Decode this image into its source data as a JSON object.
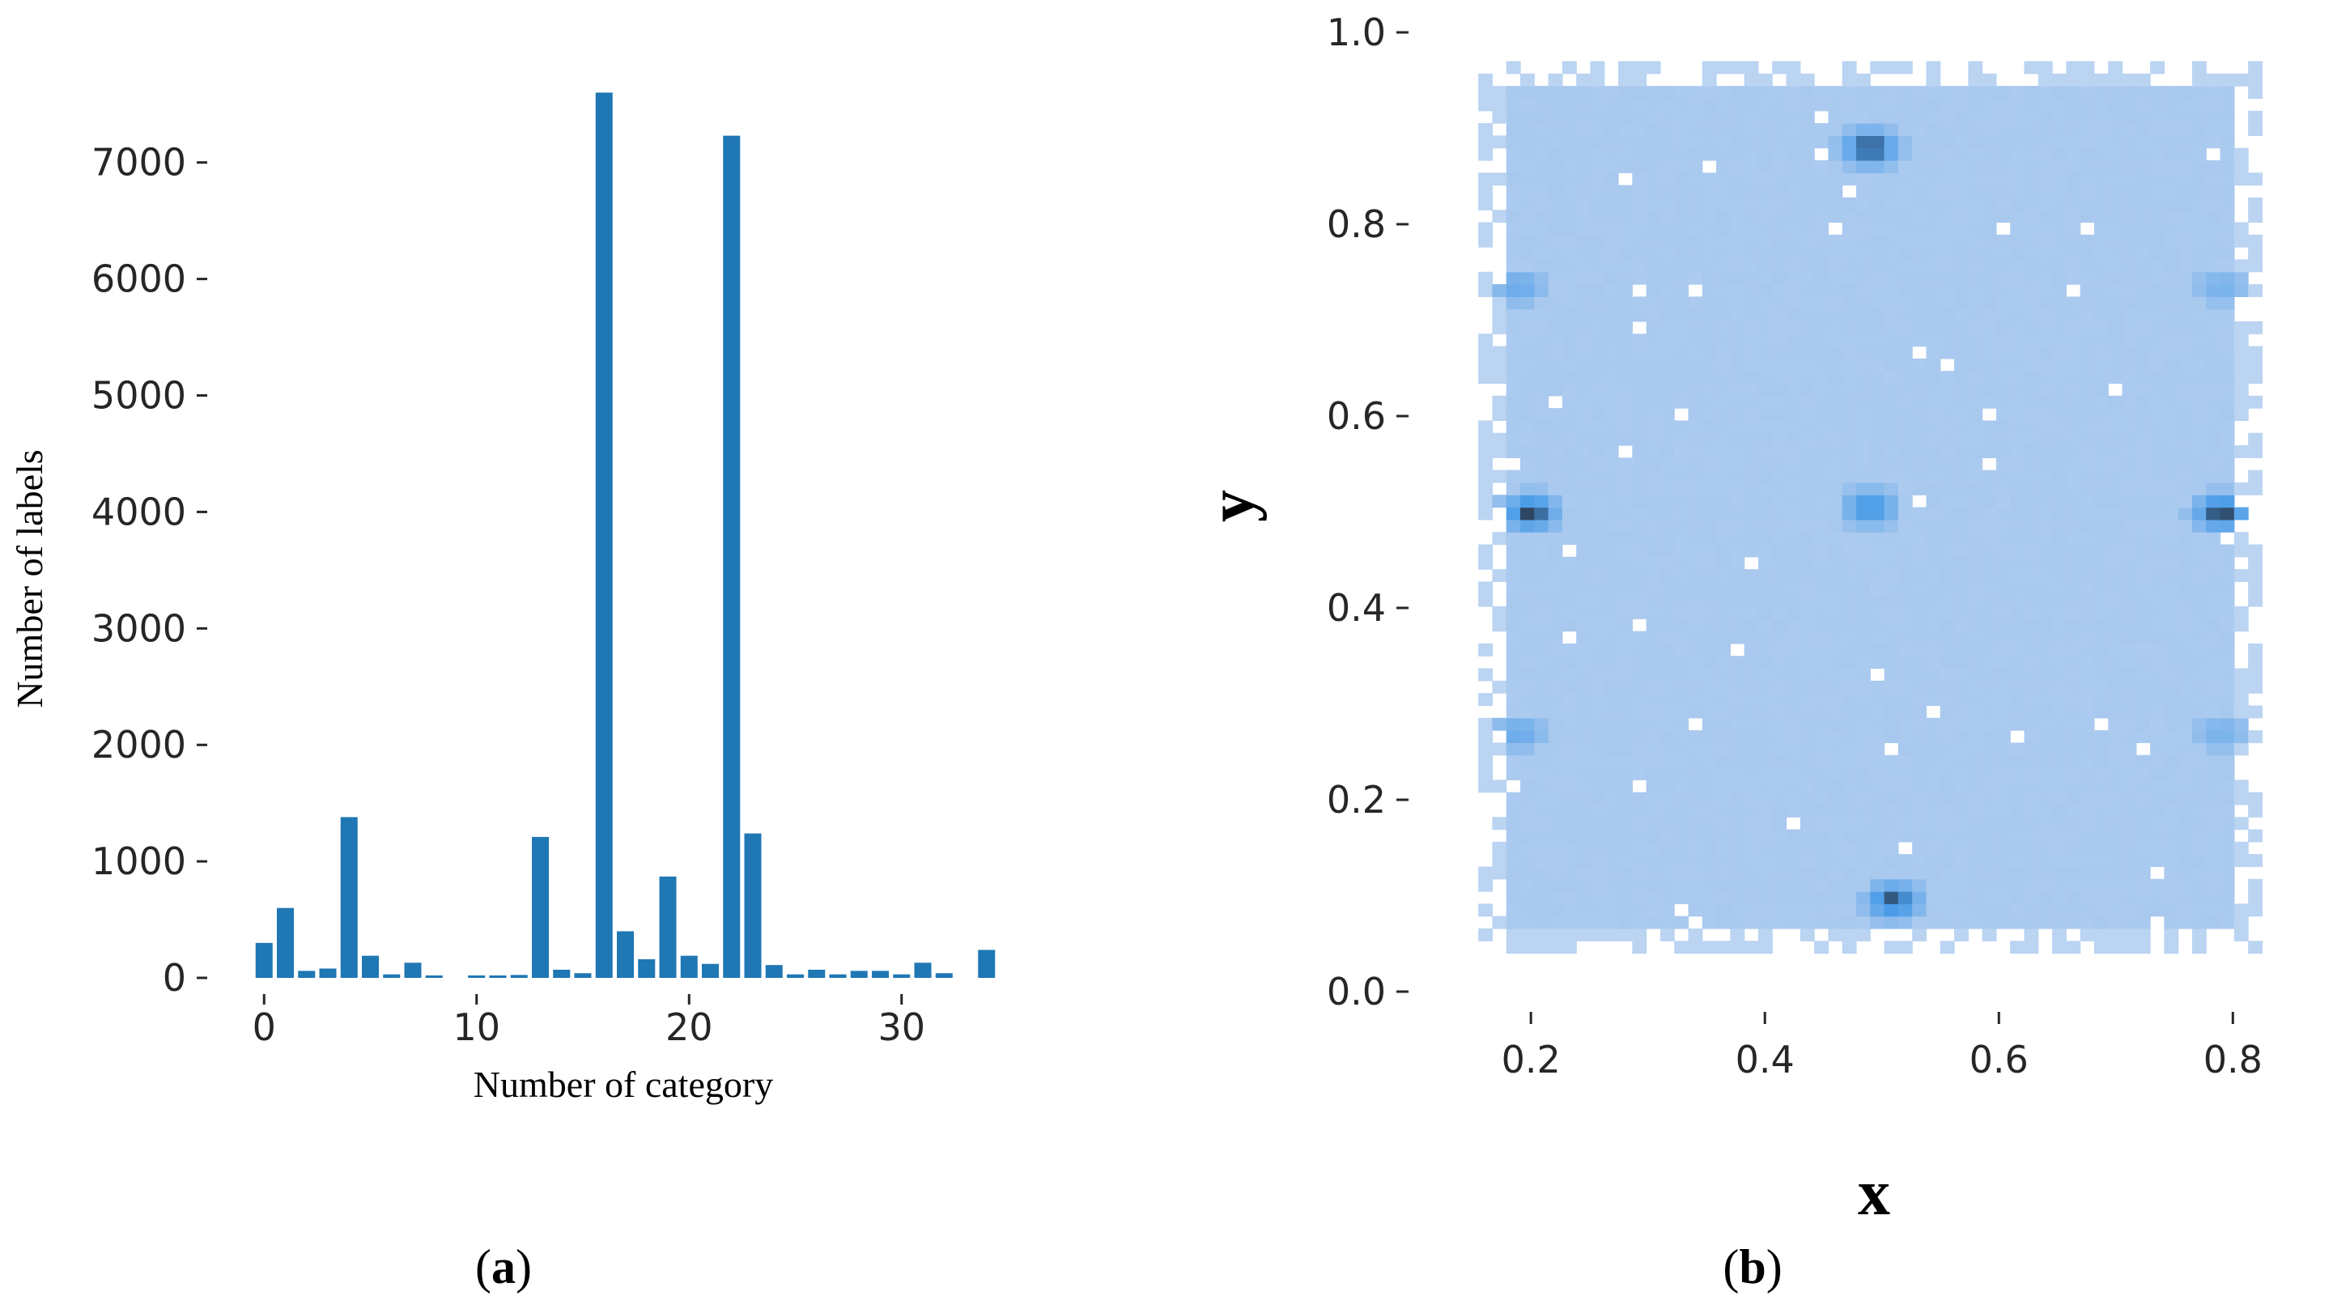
{
  "chart_data": [
    {
      "type": "bar",
      "panel_label": "a",
      "xlabel": "Number of category",
      "ylabel": "Number of labels",
      "x_ticks": [
        0,
        10,
        20,
        30
      ],
      "y_ticks": [
        0,
        1000,
        2000,
        3000,
        4000,
        5000,
        6000,
        7000
      ],
      "xlim": [
        -1,
        35
      ],
      "ylim": [
        0,
        7700
      ],
      "color": "#1f77b4",
      "categories": [
        0,
        1,
        2,
        3,
        4,
        5,
        6,
        7,
        8,
        9,
        10,
        11,
        12,
        13,
        14,
        15,
        16,
        17,
        18,
        19,
        20,
        21,
        22,
        23,
        24,
        25,
        26,
        27,
        28,
        29,
        30,
        31,
        32,
        33,
        34
      ],
      "values": [
        300,
        600,
        60,
        80,
        1380,
        190,
        30,
        130,
        15,
        0,
        10,
        10,
        25,
        1210,
        70,
        40,
        7600,
        400,
        160,
        870,
        190,
        120,
        7230,
        1240,
        110,
        30,
        70,
        30,
        60,
        60,
        30,
        130,
        40,
        0,
        240
      ]
    },
    {
      "type": "heatmap",
      "panel_label": "b",
      "xlabel": "x",
      "ylabel": "y",
      "x_ticks": [
        "0.2",
        "0.4",
        "0.6",
        "0.8"
      ],
      "y_ticks": [
        "0.0",
        "0.2",
        "0.4",
        "0.6",
        "0.8",
        "1.0"
      ],
      "xlim": [
        0.13,
        0.86
      ],
      "ylim": [
        0.0,
        1.0
      ],
      "base_color": "#a8c8ee",
      "low_color": "#c9ddf5",
      "hot_color": "#4a9ce8",
      "peak_color": "#2b3e55",
      "hotspots": [
        {
          "x": 0.49,
          "y": 0.88,
          "level": 1.0
        },
        {
          "x": 0.2,
          "y": 0.5,
          "level": 1.0
        },
        {
          "x": 0.49,
          "y": 0.505,
          "level": 0.75
        },
        {
          "x": 0.79,
          "y": 0.5,
          "level": 1.0
        },
        {
          "x": 0.51,
          "y": 0.095,
          "level": 0.95
        },
        {
          "x": 0.19,
          "y": 0.735,
          "level": 0.45
        },
        {
          "x": 0.19,
          "y": 0.27,
          "level": 0.45
        },
        {
          "x": 0.79,
          "y": 0.735,
          "level": 0.35
        },
        {
          "x": 0.79,
          "y": 0.27,
          "level": 0.35
        }
      ]
    }
  ]
}
